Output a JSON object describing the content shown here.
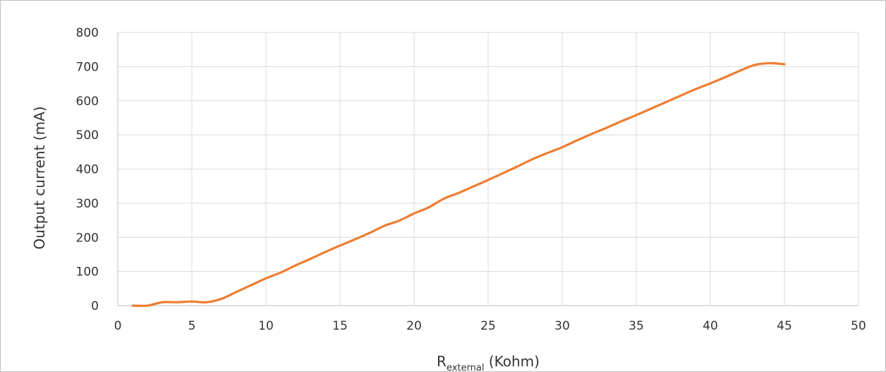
{
  "chart_data": {
    "type": "line",
    "title": "",
    "xlabel": {
      "main": "R",
      "subscript": "external",
      "suffix": " (Kohm)"
    },
    "ylabel": "Output current  (mA)",
    "xlim": [
      0,
      50
    ],
    "ylim": [
      0,
      800
    ],
    "x_ticks": [
      "0",
      "5",
      "10",
      "15",
      "20",
      "25",
      "30",
      "35",
      "40",
      "45",
      "50"
    ],
    "y_ticks": [
      "0",
      "100",
      "200",
      "300",
      "400",
      "500",
      "600",
      "700",
      "800"
    ],
    "grid": true,
    "legend": "none",
    "series": [
      {
        "color": "#ED7D31",
        "x": [
          1,
          2,
          3,
          4,
          5,
          6,
          7,
          8,
          9,
          10,
          11,
          12,
          13,
          14,
          15,
          16,
          17,
          18,
          19,
          20,
          21,
          22,
          23,
          24,
          25,
          26,
          27,
          28,
          29,
          30,
          31,
          32,
          33,
          34,
          35,
          36,
          37,
          38,
          39,
          40,
          41,
          42,
          43,
          44,
          45
        ],
        "y": [
          0,
          0,
          10,
          10,
          12,
          10,
          20,
          40,
          60,
          80,
          97,
          118,
          137,
          157,
          176,
          194,
          213,
          234,
          249,
          270,
          288,
          313,
          330,
          349,
          368,
          388,
          408,
          429,
          447,
          464,
          484,
          503,
          521,
          540,
          558,
          577,
          596,
          615,
          634,
          651,
          669,
          688,
          705,
          710,
          707
        ]
      }
    ]
  }
}
